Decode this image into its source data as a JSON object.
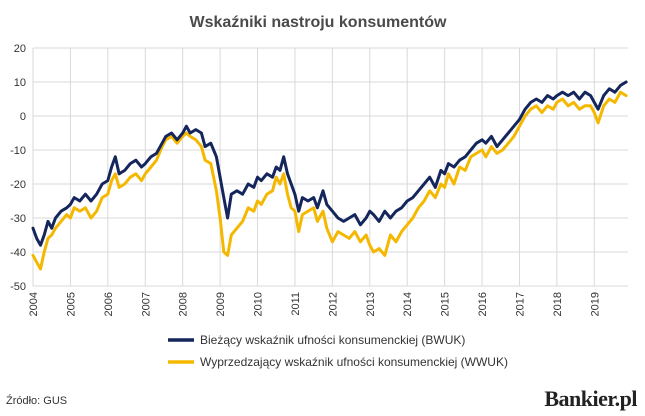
{
  "source": "Źródło: GUS",
  "brand": "Bankier.pl",
  "chart_data": {
    "type": "line",
    "title": "Wskaźniki nastroju konsumentów",
    "xlabel": "",
    "ylabel": "",
    "ylim": [
      -50,
      20
    ],
    "yticks": [
      20,
      10,
      0,
      -10,
      -20,
      -30,
      -40,
      -50
    ],
    "xlim": [
      2004.0,
      2019.9
    ],
    "xticks": [
      "2004",
      "2005",
      "2006",
      "2007",
      "2008",
      "2009",
      "2010",
      "2011",
      "2012",
      "2013",
      "2014",
      "2015",
      "2016",
      "2017",
      "2018",
      "2019"
    ],
    "grid": true,
    "legend_position": "bottom",
    "series": [
      {
        "name": "Bieżący wskaźnik ufności konsumenckiej (BWUK)",
        "color": "#14265c",
        "points": [
          [
            2004.0,
            -33
          ],
          [
            2004.1,
            -36
          ],
          [
            2004.2,
            -38
          ],
          [
            2004.3,
            -35
          ],
          [
            2004.4,
            -31
          ],
          [
            2004.5,
            -33
          ],
          [
            2004.6,
            -30
          ],
          [
            2004.75,
            -28
          ],
          [
            2004.9,
            -27
          ],
          [
            2005.0,
            -26
          ],
          [
            2005.1,
            -24
          ],
          [
            2005.25,
            -25
          ],
          [
            2005.4,
            -23
          ],
          [
            2005.55,
            -25
          ],
          [
            2005.7,
            -23
          ],
          [
            2005.85,
            -20
          ],
          [
            2006.0,
            -19
          ],
          [
            2006.1,
            -15
          ],
          [
            2006.2,
            -12
          ],
          [
            2006.3,
            -17
          ],
          [
            2006.45,
            -16
          ],
          [
            2006.6,
            -14
          ],
          [
            2006.75,
            -13
          ],
          [
            2006.9,
            -15
          ],
          [
            2007.0,
            -14
          ],
          [
            2007.15,
            -12
          ],
          [
            2007.3,
            -11
          ],
          [
            2007.45,
            -8
          ],
          [
            2007.55,
            -6
          ],
          [
            2007.7,
            -5
          ],
          [
            2007.85,
            -7
          ],
          [
            2008.0,
            -5
          ],
          [
            2008.1,
            -3
          ],
          [
            2008.2,
            -5
          ],
          [
            2008.35,
            -4
          ],
          [
            2008.5,
            -5
          ],
          [
            2008.6,
            -9
          ],
          [
            2008.75,
            -8
          ],
          [
            2008.9,
            -12
          ],
          [
            2009.0,
            -18
          ],
          [
            2009.1,
            -24
          ],
          [
            2009.2,
            -30
          ],
          [
            2009.3,
            -23
          ],
          [
            2009.45,
            -22
          ],
          [
            2009.6,
            -23
          ],
          [
            2009.75,
            -20
          ],
          [
            2009.9,
            -21
          ],
          [
            2010.0,
            -18
          ],
          [
            2010.1,
            -19
          ],
          [
            2010.25,
            -17
          ],
          [
            2010.4,
            -18
          ],
          [
            2010.5,
            -15
          ],
          [
            2010.6,
            -16
          ],
          [
            2010.7,
            -12
          ],
          [
            2010.8,
            -17
          ],
          [
            2010.9,
            -20
          ],
          [
            2011.0,
            -23
          ],
          [
            2011.1,
            -28
          ],
          [
            2011.2,
            -24
          ],
          [
            2011.35,
            -25
          ],
          [
            2011.5,
            -24
          ],
          [
            2011.6,
            -27
          ],
          [
            2011.75,
            -22
          ],
          [
            2011.85,
            -26
          ],
          [
            2012.0,
            -28
          ],
          [
            2012.15,
            -30
          ],
          [
            2012.3,
            -31
          ],
          [
            2012.45,
            -30
          ],
          [
            2012.6,
            -29
          ],
          [
            2012.75,
            -32
          ],
          [
            2012.9,
            -30
          ],
          [
            2013.0,
            -28
          ],
          [
            2013.1,
            -29
          ],
          [
            2013.25,
            -31
          ],
          [
            2013.4,
            -28
          ],
          [
            2013.55,
            -30
          ],
          [
            2013.7,
            -28
          ],
          [
            2013.85,
            -27
          ],
          [
            2014.0,
            -25
          ],
          [
            2014.15,
            -24
          ],
          [
            2014.3,
            -22
          ],
          [
            2014.45,
            -20
          ],
          [
            2014.6,
            -18
          ],
          [
            2014.75,
            -21
          ],
          [
            2014.9,
            -16
          ],
          [
            2015.0,
            -17
          ],
          [
            2015.1,
            -14
          ],
          [
            2015.25,
            -15
          ],
          [
            2015.4,
            -13
          ],
          [
            2015.55,
            -12
          ],
          [
            2015.7,
            -10
          ],
          [
            2015.85,
            -8
          ],
          [
            2016.0,
            -7
          ],
          [
            2016.1,
            -8
          ],
          [
            2016.25,
            -6
          ],
          [
            2016.4,
            -9
          ],
          [
            2016.55,
            -7
          ],
          [
            2016.7,
            -5
          ],
          [
            2016.85,
            -3
          ],
          [
            2017.0,
            -1
          ],
          [
            2017.15,
            2
          ],
          [
            2017.3,
            4
          ],
          [
            2017.45,
            5
          ],
          [
            2017.6,
            4
          ],
          [
            2017.75,
            6
          ],
          [
            2017.9,
            5
          ],
          [
            2018.0,
            6
          ],
          [
            2018.15,
            7
          ],
          [
            2018.3,
            6
          ],
          [
            2018.45,
            7
          ],
          [
            2018.6,
            5
          ],
          [
            2018.75,
            7
          ],
          [
            2018.9,
            6
          ],
          [
            2019.0,
            4
          ],
          [
            2019.1,
            2
          ],
          [
            2019.25,
            6
          ],
          [
            2019.4,
            8
          ],
          [
            2019.55,
            7
          ],
          [
            2019.7,
            9
          ],
          [
            2019.85,
            10
          ]
        ]
      },
      {
        "name": "Wyprzedzający wskaźnik ufności konsumenckiej (WWUK)",
        "color": "#f5b800",
        "points": [
          [
            2004.0,
            -41
          ],
          [
            2004.1,
            -43
          ],
          [
            2004.2,
            -45
          ],
          [
            2004.3,
            -40
          ],
          [
            2004.4,
            -36
          ],
          [
            2004.5,
            -35
          ],
          [
            2004.6,
            -33
          ],
          [
            2004.75,
            -31
          ],
          [
            2004.9,
            -29
          ],
          [
            2005.0,
            -30
          ],
          [
            2005.1,
            -27
          ],
          [
            2005.25,
            -28
          ],
          [
            2005.4,
            -27
          ],
          [
            2005.55,
            -30
          ],
          [
            2005.7,
            -28
          ],
          [
            2005.85,
            -24
          ],
          [
            2006.0,
            -23
          ],
          [
            2006.1,
            -19
          ],
          [
            2006.2,
            -17
          ],
          [
            2006.3,
            -21
          ],
          [
            2006.45,
            -20
          ],
          [
            2006.6,
            -18
          ],
          [
            2006.75,
            -17
          ],
          [
            2006.9,
            -19
          ],
          [
            2007.0,
            -17
          ],
          [
            2007.15,
            -15
          ],
          [
            2007.3,
            -13
          ],
          [
            2007.45,
            -9
          ],
          [
            2007.55,
            -7
          ],
          [
            2007.7,
            -6
          ],
          [
            2007.85,
            -8
          ],
          [
            2008.0,
            -6
          ],
          [
            2008.1,
            -5
          ],
          [
            2008.2,
            -6
          ],
          [
            2008.35,
            -7
          ],
          [
            2008.5,
            -9
          ],
          [
            2008.6,
            -13
          ],
          [
            2008.75,
            -14
          ],
          [
            2008.9,
            -22
          ],
          [
            2009.0,
            -30
          ],
          [
            2009.1,
            -40
          ],
          [
            2009.2,
            -41
          ],
          [
            2009.3,
            -35
          ],
          [
            2009.45,
            -33
          ],
          [
            2009.6,
            -31
          ],
          [
            2009.75,
            -27
          ],
          [
            2009.9,
            -28
          ],
          [
            2010.0,
            -25
          ],
          [
            2010.1,
            -26
          ],
          [
            2010.25,
            -23
          ],
          [
            2010.4,
            -22
          ],
          [
            2010.5,
            -18
          ],
          [
            2010.6,
            -20
          ],
          [
            2010.7,
            -17
          ],
          [
            2010.8,
            -23
          ],
          [
            2010.9,
            -27
          ],
          [
            2011.0,
            -28
          ],
          [
            2011.1,
            -34
          ],
          [
            2011.2,
            -29
          ],
          [
            2011.35,
            -28
          ],
          [
            2011.5,
            -27
          ],
          [
            2011.6,
            -31
          ],
          [
            2011.75,
            -28
          ],
          [
            2011.85,
            -33
          ],
          [
            2012.0,
            -37
          ],
          [
            2012.15,
            -34
          ],
          [
            2012.3,
            -35
          ],
          [
            2012.45,
            -36
          ],
          [
            2012.6,
            -34
          ],
          [
            2012.75,
            -37
          ],
          [
            2012.9,
            -35
          ],
          [
            2013.0,
            -38
          ],
          [
            2013.1,
            -40
          ],
          [
            2013.25,
            -39
          ],
          [
            2013.4,
            -41
          ],
          [
            2013.55,
            -35
          ],
          [
            2013.7,
            -37
          ],
          [
            2013.85,
            -34
          ],
          [
            2014.0,
            -32
          ],
          [
            2014.15,
            -30
          ],
          [
            2014.3,
            -27
          ],
          [
            2014.45,
            -25
          ],
          [
            2014.6,
            -22
          ],
          [
            2014.75,
            -24
          ],
          [
            2014.9,
            -20
          ],
          [
            2015.0,
            -21
          ],
          [
            2015.1,
            -17
          ],
          [
            2015.25,
            -20
          ],
          [
            2015.4,
            -15
          ],
          [
            2015.55,
            -16
          ],
          [
            2015.7,
            -12
          ],
          [
            2015.85,
            -11
          ],
          [
            2016.0,
            -10
          ],
          [
            2016.1,
            -12
          ],
          [
            2016.25,
            -9
          ],
          [
            2016.4,
            -11
          ],
          [
            2016.55,
            -10
          ],
          [
            2016.7,
            -8
          ],
          [
            2016.85,
            -6
          ],
          [
            2017.0,
            -3
          ],
          [
            2017.15,
            0
          ],
          [
            2017.3,
            2
          ],
          [
            2017.45,
            3
          ],
          [
            2017.6,
            1
          ],
          [
            2017.75,
            3
          ],
          [
            2017.9,
            2
          ],
          [
            2018.0,
            4
          ],
          [
            2018.15,
            5
          ],
          [
            2018.3,
            3
          ],
          [
            2018.45,
            4
          ],
          [
            2018.6,
            2
          ],
          [
            2018.75,
            3
          ],
          [
            2018.9,
            3
          ],
          [
            2019.0,
            1
          ],
          [
            2019.1,
            -2
          ],
          [
            2019.25,
            3
          ],
          [
            2019.4,
            5
          ],
          [
            2019.55,
            4
          ],
          [
            2019.7,
            7
          ],
          [
            2019.85,
            6
          ]
        ]
      }
    ]
  }
}
